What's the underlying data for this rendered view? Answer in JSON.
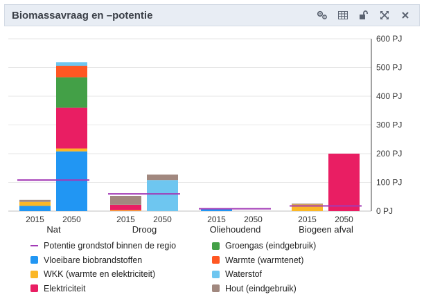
{
  "header": {
    "title": "Biomassavraag en –potentie",
    "tools": [
      {
        "name": "settings-icon"
      },
      {
        "name": "table-icon"
      },
      {
        "name": "unlock-icon"
      },
      {
        "name": "expand-icon"
      },
      {
        "name": "close-icon"
      }
    ]
  },
  "colors": {
    "Vloeibare biobrandstoffen": "#2196f3",
    "WKK (warmte en elektriciteit)": "#fbb726",
    "Elektriciteit": "#e91e63",
    "Groengas (eindgebruik)": "#43a047",
    "Warmte (warmtenet)": "#ff5722",
    "Waterstof": "#6ec6f0",
    "Hout (eindgebruik)": "#a1887f",
    "Potentie grondstof binnen de regio": "#a23ab6"
  },
  "chart_data": {
    "type": "bar",
    "stacked": true,
    "yunit": "PJ",
    "ylim": [
      0,
      600
    ],
    "yticks": [
      "0 PJ",
      "100 PJ",
      "200 PJ",
      "300 PJ",
      "400 PJ",
      "500 PJ",
      "600 PJ"
    ],
    "groups": [
      {
        "label": "Nat",
        "years": [
          "2015",
          "2050"
        ],
        "potential": 108
      },
      {
        "label": "Droog",
        "years": [
          "2015",
          "2050"
        ],
        "potential": 60
      },
      {
        "label": "Oliehoudend",
        "years": [
          "2015",
          "2050"
        ],
        "potential": 8
      },
      {
        "label": "Biogeen afval",
        "years": [
          "2015",
          "2050"
        ],
        "potential": 18
      }
    ],
    "bars": [
      {
        "group": 0,
        "year": "2015",
        "stack": [
          {
            "series": "Vloeibare biobrandstoffen",
            "value": 18
          },
          {
            "series": "WKK (warmte en elektriciteit)",
            "value": 14
          },
          {
            "series": "Hout (eindgebruik)",
            "value": 7
          }
        ]
      },
      {
        "group": 0,
        "year": "2050",
        "stack": [
          {
            "series": "Vloeibare biobrandstoffen",
            "value": 208
          },
          {
            "series": "WKK (warmte en elektriciteit)",
            "value": 10
          },
          {
            "series": "Elektriciteit",
            "value": 142
          },
          {
            "series": "Groengas (eindgebruik)",
            "value": 106
          },
          {
            "series": "Warmte (warmtenet)",
            "value": 40
          },
          {
            "series": "Waterstof",
            "value": 12
          }
        ]
      },
      {
        "group": 1,
        "year": "2015",
        "stack": [
          {
            "series": "WKK (warmte en elektriciteit)",
            "value": 3
          },
          {
            "series": "Elektriciteit",
            "value": 19
          },
          {
            "series": "Hout (eindgebruik)",
            "value": 31
          }
        ]
      },
      {
        "group": 1,
        "year": "2050",
        "stack": [
          {
            "series": "Waterstof",
            "value": 108
          },
          {
            "series": "Hout (eindgebruik)",
            "value": 19
          }
        ]
      },
      {
        "group": 2,
        "year": "2015",
        "stack": [
          {
            "series": "Vloeibare biobrandstoffen",
            "value": 7
          }
        ]
      },
      {
        "group": 2,
        "year": "2050",
        "stack": []
      },
      {
        "group": 3,
        "year": "2015",
        "stack": [
          {
            "series": "WKK (warmte en elektriciteit)",
            "value": 23
          },
          {
            "series": "Hout (eindgebruik)",
            "value": 3
          }
        ]
      },
      {
        "group": 3,
        "year": "2050",
        "stack": [
          {
            "series": "Elektriciteit",
            "value": 200
          }
        ]
      }
    ]
  },
  "legend": [
    {
      "label": "Potentie grondstof binnen de regio",
      "kind": "line"
    },
    {
      "label": "Groengas (eindgebruik)",
      "kind": "box"
    },
    {
      "label": "Vloeibare biobrandstoffen",
      "kind": "box"
    },
    {
      "label": "Warmte (warmtenet)",
      "kind": "box"
    },
    {
      "label": "WKK (warmte en elektriciteit)",
      "kind": "box"
    },
    {
      "label": "Waterstof",
      "kind": "box"
    },
    {
      "label": "Elektriciteit",
      "kind": "box"
    },
    {
      "label": "Hout (eindgebruik)",
      "kind": "box"
    }
  ]
}
